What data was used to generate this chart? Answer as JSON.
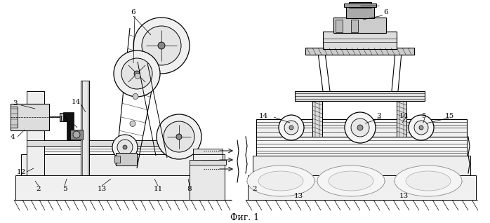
{
  "caption": "Фиг. 1",
  "bg_color": "#ffffff",
  "lc": "#000000",
  "fig_width": 6.98,
  "fig_height": 3.18,
  "dpi": 100,
  "caption_fs": 9,
  "label_fs": 7.5
}
